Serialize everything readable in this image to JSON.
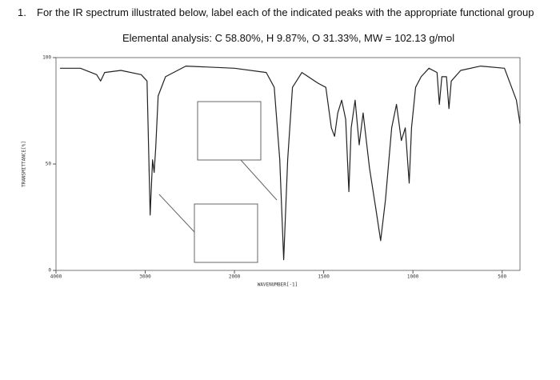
{
  "question": {
    "number": "1.",
    "text": "For the IR spectrum illustrated below, label each of the indicated peaks with the appropriate functional group",
    "analysis": "Elemental analysis: C 58.80%, H 9.87%, O 31.33%, MW = 102.13 g/mol"
  },
  "chart_data": {
    "type": "line",
    "xlabel": "WAVENUMBER[-1]",
    "ylabel": "TRANSMITTANCE[%]",
    "xlim": [
      4000,
      400
    ],
    "xticks": [
      4000,
      3000,
      2000,
      1500,
      1000,
      500
    ],
    "ylim": [
      0,
      100
    ],
    "yticks": [
      0,
      50,
      100
    ],
    "color": "#222",
    "x": [
      3955,
      3727,
      3545,
      3500,
      3455,
      3273,
      3045,
      2980,
      2945,
      2918,
      2900,
      2882,
      2855,
      2773,
      2545,
      2000,
      1822,
      1777,
      1746,
      1724,
      1702,
      1675,
      1622,
      1533,
      1488,
      1457,
      1439,
      1421,
      1399,
      1377,
      1359,
      1346,
      1324,
      1301,
      1279,
      1243,
      1208,
      1181,
      1154,
      1119,
      1092,
      1065,
      1043,
      1021,
      1008,
      985,
      954,
      910,
      865,
      852,
      838,
      812,
      798,
      785,
      732,
      620,
      487,
      420,
      400
    ],
    "series": [
      {
        "values": [
          95,
          95,
          92,
          89,
          93,
          94,
          92,
          89,
          26,
          52,
          46,
          58,
          82,
          91,
          96,
          95,
          93,
          86,
          52,
          5,
          52,
          86,
          93,
          88,
          86,
          67,
          63,
          74,
          80,
          71,
          37,
          67,
          80,
          59,
          74,
          48,
          29,
          14,
          33,
          67,
          78,
          61,
          67,
          41,
          67,
          86,
          91,
          95,
          93,
          78,
          91,
          91,
          76,
          89,
          94,
          96,
          95,
          80,
          69
        ]
      }
    ]
  }
}
